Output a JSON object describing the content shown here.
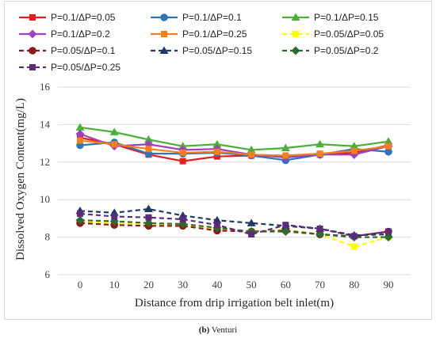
{
  "caption": {
    "label": "(b)",
    "text": " Venturi"
  },
  "chart_data": {
    "type": "line",
    "xlabel": "Distance from drip irrigation belt inlet(m)",
    "ylabel": "Dissolved Oxygen Content(mg/L)",
    "x": [
      0,
      10,
      20,
      30,
      40,
      50,
      60,
      70,
      80,
      90
    ],
    "xticks": [
      "0",
      "10",
      "20",
      "30",
      "40",
      "50",
      "60",
      "70",
      "80",
      "90"
    ],
    "yticks": [
      "6",
      "8",
      "10",
      "12",
      "14",
      "16"
    ],
    "ylim": [
      6,
      16
    ],
    "grid": true,
    "legend_position": "top",
    "series": [
      {
        "name": "P=0.1/ΔP=0.05",
        "color": "#e02020",
        "dash": "solid",
        "marker": "square",
        "values": [
          13.3,
          12.95,
          12.4,
          12.05,
          12.3,
          12.35,
          12.3,
          12.4,
          12.5,
          12.9
        ]
      },
      {
        "name": "P=0.1/ΔP=0.1",
        "color": "#2e75b6",
        "dash": "solid",
        "marker": "circle",
        "values": [
          12.9,
          13.05,
          12.45,
          12.45,
          12.5,
          12.35,
          12.1,
          12.4,
          12.7,
          12.55
        ]
      },
      {
        "name": "P=0.1/ΔP=0.15",
        "color": "#4caf3c",
        "dash": "solid",
        "marker": "triangle",
        "values": [
          13.85,
          13.6,
          13.2,
          12.85,
          12.95,
          12.65,
          12.75,
          12.95,
          12.85,
          13.1
        ]
      },
      {
        "name": "P=0.1/ΔP=0.2",
        "color": "#a040c0",
        "dash": "solid",
        "marker": "diamond",
        "values": [
          13.5,
          12.85,
          12.95,
          12.65,
          12.7,
          12.4,
          12.25,
          12.4,
          12.4,
          12.85
        ]
      },
      {
        "name": "P=0.1/ΔP=0.25",
        "color": "#f08020",
        "dash": "solid",
        "marker": "square",
        "values": [
          13.15,
          12.95,
          12.7,
          12.5,
          12.55,
          12.4,
          12.35,
          12.45,
          12.6,
          12.85
        ]
      },
      {
        "name": "P=0.05/ΔP=0.05",
        "color": "#ffff00",
        "dash": "dashed",
        "marker": "square",
        "values": [
          8.8,
          8.75,
          8.7,
          8.65,
          8.45,
          8.3,
          8.4,
          8.15,
          7.5,
          8.0
        ]
      },
      {
        "name": "P=0.05/ΔP=0.1",
        "color": "#8b1a1a",
        "dash": "dashed",
        "marker": "circle",
        "values": [
          8.75,
          8.65,
          8.6,
          8.6,
          8.35,
          8.3,
          8.35,
          8.15,
          8.05,
          8.3
        ]
      },
      {
        "name": "P=0.05/ΔP=0.15",
        "color": "#1f3864",
        "dash": "dashed",
        "marker": "triangle",
        "values": [
          9.4,
          9.3,
          9.5,
          9.15,
          8.9,
          8.75,
          8.6,
          8.45,
          8.1,
          8.15
        ]
      },
      {
        "name": "P=0.05/ΔP=0.2",
        "color": "#2e6b2e",
        "dash": "dashed",
        "marker": "diamond",
        "values": [
          8.9,
          8.85,
          8.75,
          8.7,
          8.5,
          8.3,
          8.3,
          8.15,
          8.0,
          8.0
        ]
      },
      {
        "name": "P=0.05/ΔP=0.25",
        "color": "#5b2c7a",
        "dash": "dashed",
        "marker": "square",
        "values": [
          9.25,
          9.1,
          9.05,
          8.95,
          8.65,
          8.15,
          8.65,
          8.45,
          8.05,
          8.3
        ]
      }
    ]
  }
}
